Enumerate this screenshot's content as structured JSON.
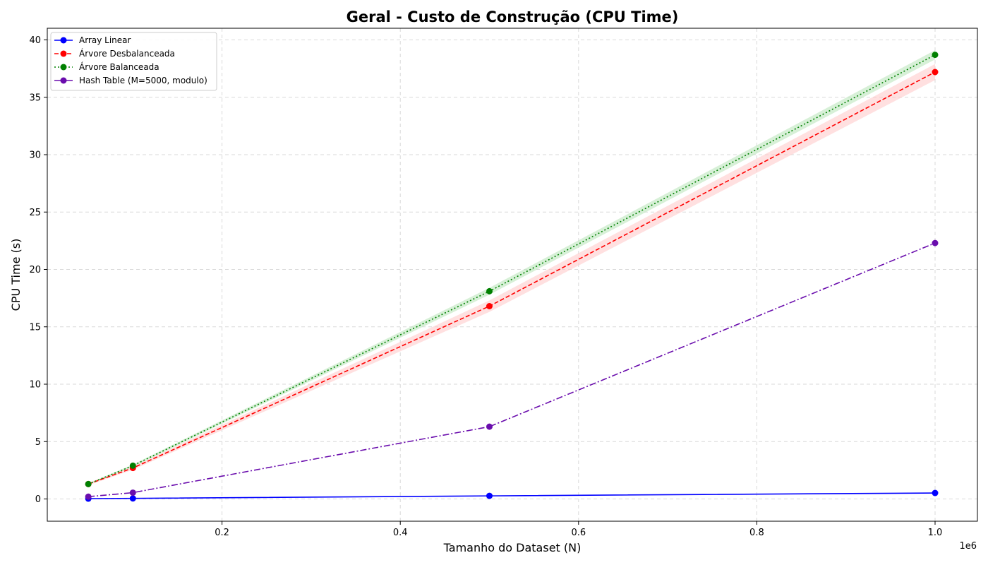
{
  "chart_data": {
    "type": "line",
    "title": "Geral - Custo de Construção (CPU Time)",
    "xlabel": "Tamanho do Dataset (N)",
    "ylabel": "CPU Time (s)",
    "x_offset_label": "1e6",
    "xlim": [
      0,
      1.0
    ],
    "ylim": [
      -2,
      41
    ],
    "x_ticks": [
      0.2,
      0.4,
      0.6,
      0.8,
      1.0
    ],
    "x_tick_labels": [
      "0.2",
      "0.4",
      "0.6",
      "0.8",
      "1.0"
    ],
    "y_ticks": [
      0,
      5,
      10,
      15,
      20,
      25,
      30,
      35,
      40
    ],
    "y_tick_labels": [
      "0",
      "5",
      "10",
      "15",
      "20",
      "25",
      "30",
      "35",
      "40"
    ],
    "grid": true,
    "legend_position": "top-left",
    "x": [
      50000,
      100000,
      500000,
      1000000
    ],
    "series": [
      {
        "name": "Array Linear",
        "values": [
          0.03,
          0.05,
          0.27,
          0.52
        ],
        "color": "#0000ff",
        "line_style": "solid"
      },
      {
        "name": "Árvore Desbalanceada",
        "values": [
          1.3,
          2.7,
          16.8,
          37.2
        ],
        "band_low": [
          1.2,
          2.55,
          16.3,
          36.5
        ],
        "band_high": [
          1.4,
          2.85,
          17.3,
          37.9
        ],
        "color": "#ff0000",
        "band_color": "#ffcccc",
        "line_style": "dashed"
      },
      {
        "name": "Árvore Balanceada",
        "values": [
          1.3,
          2.9,
          18.1,
          38.7
        ],
        "band_low": [
          1.25,
          2.8,
          17.8,
          38.3
        ],
        "band_high": [
          1.35,
          3.0,
          18.4,
          39.1
        ],
        "color": "#008000",
        "band_color": "#bde6bd",
        "line_style": "dotted"
      },
      {
        "name": "Hash Table (M=5000, modulo)",
        "values": [
          0.2,
          0.55,
          6.3,
          22.3
        ],
        "color": "#6a0dad",
        "line_style": "dashdot"
      }
    ]
  }
}
